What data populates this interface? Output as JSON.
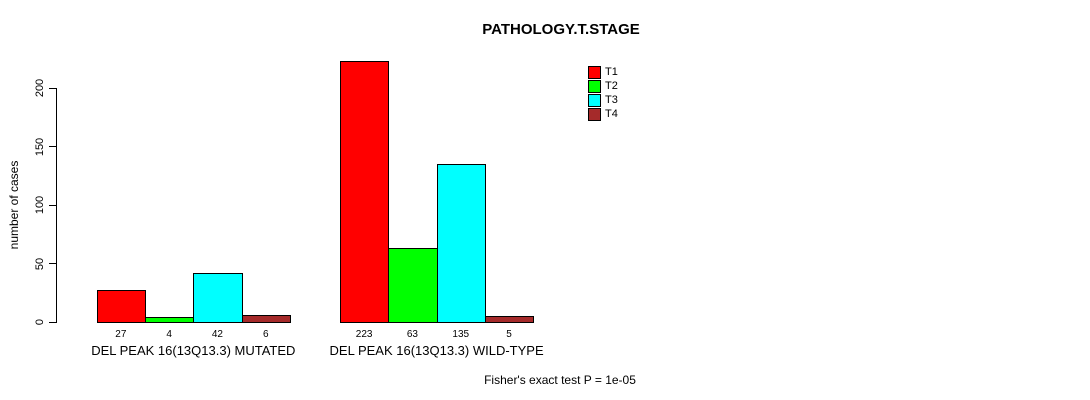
{
  "chart_data": {
    "type": "bar",
    "title": "PATHOLOGY.T.STAGE",
    "ylabel": "number of cases",
    "xlabel": "",
    "ylim": [
      0,
      223
    ],
    "yticks": [
      0,
      50,
      100,
      150,
      200
    ],
    "grid": false,
    "categories": [
      "T1",
      "T2",
      "T3",
      "T4"
    ],
    "series_colors": [
      "#FF0000",
      "#00FF00",
      "#00FFFF",
      "#A52A2A"
    ],
    "groups": [
      {
        "label": "DEL PEAK 16(13Q13.3) MUTATED",
        "values": [
          27,
          4,
          42,
          6
        ]
      },
      {
        "label": "DEL PEAK 16(13Q13.3) WILD-TYPE",
        "values": [
          223,
          63,
          135,
          5
        ]
      }
    ],
    "legend": {
      "position": "top-right",
      "entries": [
        "T1",
        "T2",
        "T3",
        "T4"
      ]
    },
    "annotation": "Fisher's exact test P = 1e-05"
  }
}
